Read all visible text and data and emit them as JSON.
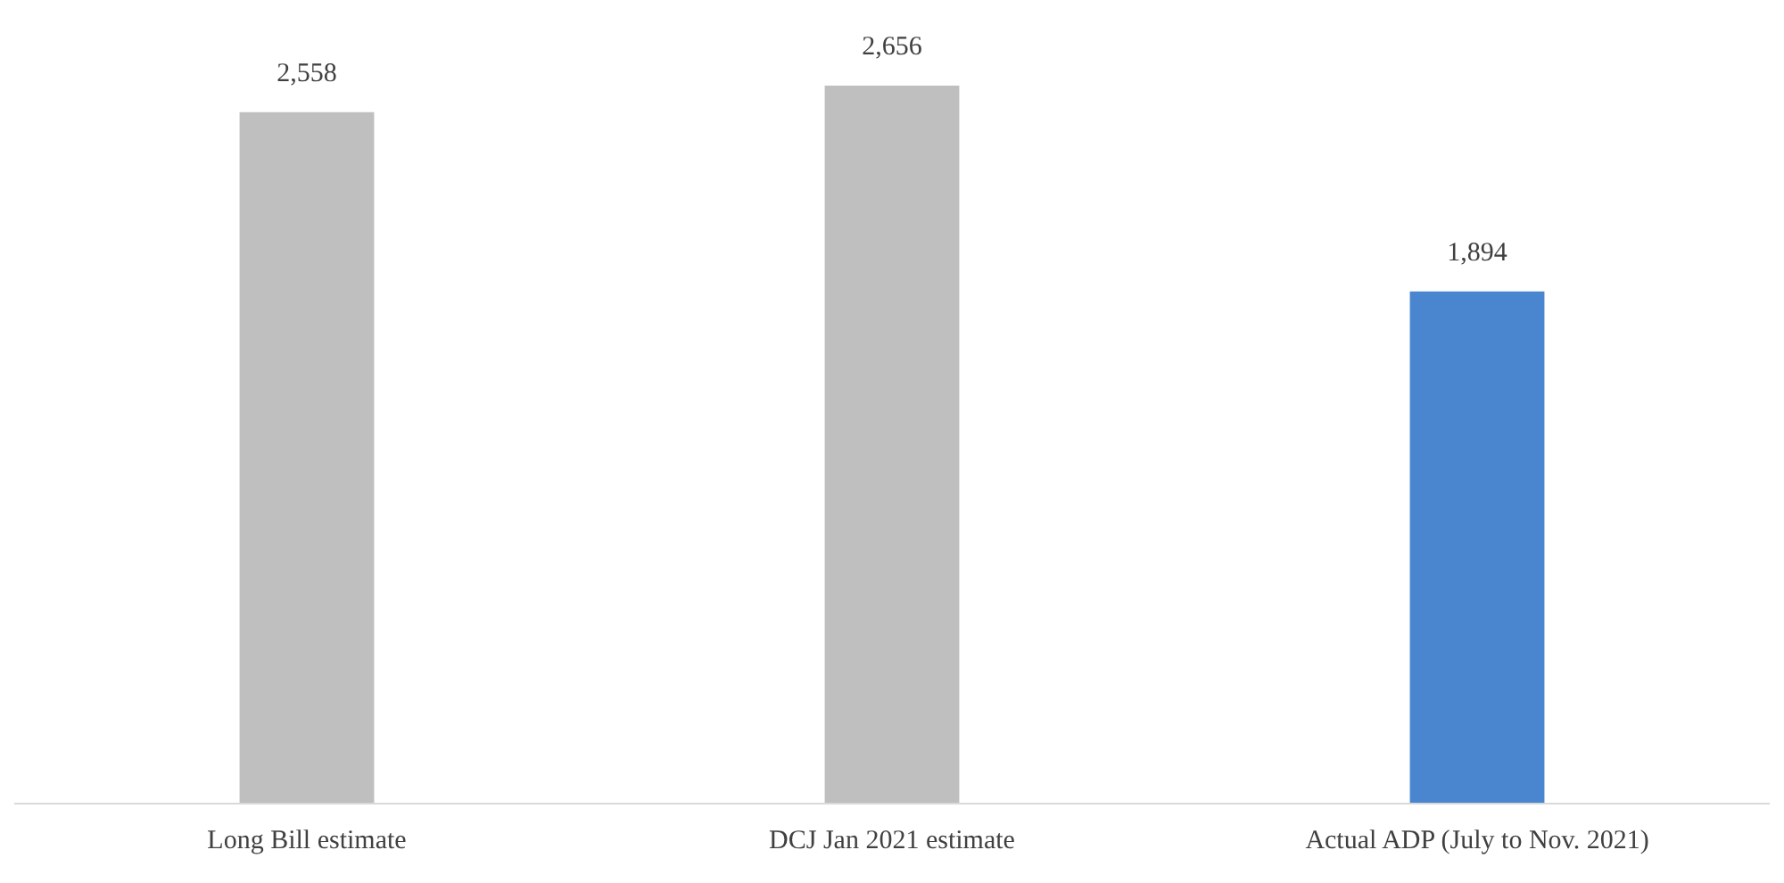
{
  "chart_data": {
    "type": "bar",
    "categories": [
      "Long Bill estimate",
      "DCJ Jan 2021 estimate",
      "Actual ADP (July to Nov. 2021)"
    ],
    "values": [
      2558,
      2656,
      1894
    ],
    "colors": [
      "#bfbfbf",
      "#bfbfbf",
      "#4a86d0"
    ],
    "value_labels": [
      "2,558",
      "2,656",
      "1,894"
    ]
  }
}
